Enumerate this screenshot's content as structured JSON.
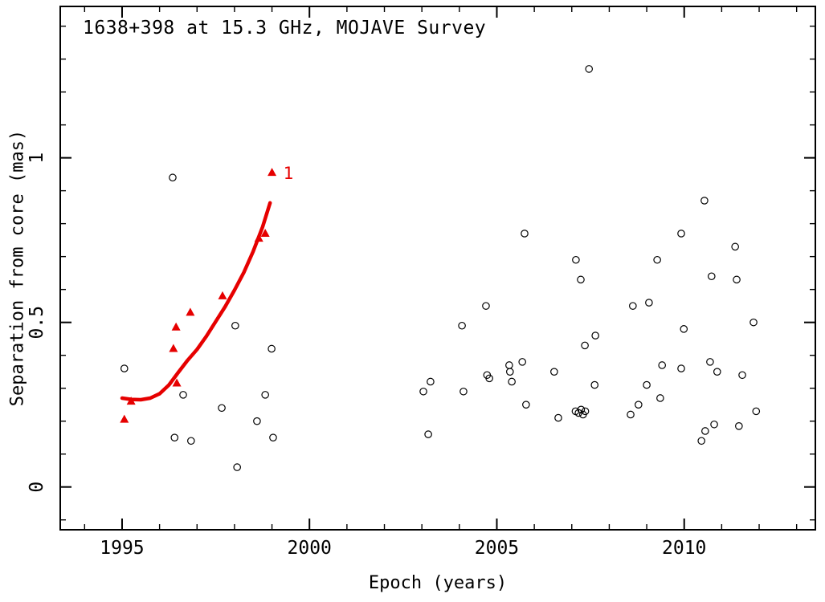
{
  "chart_data": {
    "type": "scatter",
    "title": "1638+398 at 15.3 GHz, MOJAVE Survey",
    "xlabel": "Epoch (years)",
    "ylabel": "Separation from core (mas)",
    "grid": false,
    "background": "#ffffff",
    "frame_color": "#000000",
    "x_axis": {
      "range": [
        1993.35,
        2013.5
      ],
      "major_ticks": [
        1995,
        2000,
        2005,
        2010
      ],
      "major_tick_labels": [
        "1995",
        "2000",
        "2005",
        "2010"
      ],
      "minor_step": 1
    },
    "y_axis": {
      "range": [
        -0.13,
        1.46
      ],
      "major_ticks": [
        0,
        0.5,
        1
      ],
      "major_tick_labels": [
        "0",
        "0.5",
        "1"
      ],
      "minor_step": 0.1
    },
    "series": [
      {
        "name": "unidentified-components",
        "marker": "open-circle",
        "color": "#000000",
        "points": [
          [
            1995.06,
            0.36
          ],
          [
            1996.35,
            0.94
          ],
          [
            1996.4,
            0.15
          ],
          [
            1996.63,
            0.28
          ],
          [
            1996.84,
            0.14
          ],
          [
            1997.66,
            0.24
          ],
          [
            1998.02,
            0.49
          ],
          [
            1998.07,
            0.06
          ],
          [
            1998.6,
            0.2
          ],
          [
            1998.82,
            0.28
          ],
          [
            1998.99,
            0.42
          ],
          [
            1999.03,
            0.15
          ],
          [
            2003.04,
            0.29
          ],
          [
            2003.17,
            0.16
          ],
          [
            2003.23,
            0.32
          ],
          [
            2004.07,
            0.49
          ],
          [
            2004.11,
            0.29
          ],
          [
            2004.71,
            0.55
          ],
          [
            2004.74,
            0.34
          ],
          [
            2004.8,
            0.33
          ],
          [
            2005.33,
            0.37
          ],
          [
            2005.35,
            0.35
          ],
          [
            2005.4,
            0.32
          ],
          [
            2005.68,
            0.38
          ],
          [
            2005.74,
            0.77
          ],
          [
            2005.78,
            0.25
          ],
          [
            2006.53,
            0.35
          ],
          [
            2006.64,
            0.21
          ],
          [
            2007.11,
            0.69
          ],
          [
            2007.24,
            0.63
          ],
          [
            2007.1,
            0.23
          ],
          [
            2007.18,
            0.225
          ],
          [
            2007.25,
            0.235
          ],
          [
            2007.3,
            0.22
          ],
          [
            2007.36,
            0.23
          ],
          [
            2007.35,
            0.43
          ],
          [
            2007.46,
            1.27
          ],
          [
            2007.61,
            0.31
          ],
          [
            2007.63,
            0.46
          ],
          [
            2008.57,
            0.22
          ],
          [
            2008.63,
            0.55
          ],
          [
            2008.78,
            0.25
          ],
          [
            2009.0,
            0.31
          ],
          [
            2009.06,
            0.56
          ],
          [
            2009.28,
            0.69
          ],
          [
            2009.36,
            0.27
          ],
          [
            2009.41,
            0.37
          ],
          [
            2009.92,
            0.36
          ],
          [
            2009.92,
            0.77
          ],
          [
            2009.99,
            0.48
          ],
          [
            2010.46,
            0.14
          ],
          [
            2010.54,
            0.87
          ],
          [
            2010.56,
            0.17
          ],
          [
            2010.69,
            0.38
          ],
          [
            2010.73,
            0.64
          ],
          [
            2010.8,
            0.19
          ],
          [
            2010.88,
            0.35
          ],
          [
            2011.36,
            0.73
          ],
          [
            2011.4,
            0.63
          ],
          [
            2011.46,
            0.185
          ],
          [
            2011.55,
            0.34
          ],
          [
            2011.85,
            0.5
          ],
          [
            2011.92,
            0.23
          ]
        ]
      },
      {
        "name": "component-1",
        "marker": "filled-triangle",
        "color": "#e60000",
        "label": "1",
        "label_point": [
          1999.3,
          0.955
        ],
        "points": [
          [
            1995.06,
            0.205
          ],
          [
            1995.24,
            0.26
          ],
          [
            1996.37,
            0.42
          ],
          [
            1996.44,
            0.485
          ],
          [
            1996.46,
            0.315
          ],
          [
            1996.82,
            0.53
          ],
          [
            1997.68,
            0.58
          ],
          [
            1998.65,
            0.755
          ],
          [
            1998.82,
            0.77
          ],
          [
            1999.0,
            0.955
          ]
        ]
      }
    ],
    "fit_curve": {
      "name": "component-1-fit",
      "color": "#e60000",
      "points": [
        [
          1995.0,
          0.27
        ],
        [
          1995.25,
          0.266
        ],
        [
          1995.5,
          0.265
        ],
        [
          1995.75,
          0.27
        ],
        [
          1996.0,
          0.283
        ],
        [
          1996.25,
          0.31
        ],
        [
          1996.5,
          0.348
        ],
        [
          1996.75,
          0.385
        ],
        [
          1997.0,
          0.418
        ],
        [
          1997.25,
          0.458
        ],
        [
          1997.5,
          0.503
        ],
        [
          1997.75,
          0.548
        ],
        [
          1998.0,
          0.598
        ],
        [
          1998.25,
          0.652
        ],
        [
          1998.5,
          0.716
        ],
        [
          1998.75,
          0.79
        ],
        [
          1998.95,
          0.863
        ]
      ]
    }
  }
}
